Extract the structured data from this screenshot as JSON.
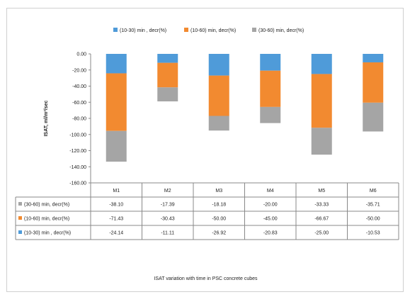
{
  "chart_data": {
    "type": "bar",
    "stacked": true,
    "categories": [
      "M1",
      "M2",
      "M3",
      "M4",
      "M5",
      "M6"
    ],
    "series": [
      {
        "name": "(10-30) min , decr(%)",
        "color": "#4f9bd9",
        "values": [
          -24.14,
          -11.11,
          -26.92,
          -20.83,
          -25.0,
          -10.53
        ]
      },
      {
        "name": "(10-60) min, decr(%)",
        "color": "#f28a30",
        "values": [
          -71.43,
          -30.43,
          -50.0,
          -45.0,
          -66.67,
          -50.0
        ]
      },
      {
        "name": "(30-60) min, decr(%)",
        "color": "#a5a5a5",
        "values": [
          -38.1,
          -17.39,
          -18.18,
          -20.0,
          -33.33,
          -35.71
        ]
      }
    ],
    "table_rows": [
      {
        "name": "(30-60) min, decr(%)",
        "color": "#a5a5a5",
        "cells": [
          "-38.10",
          "-17.39",
          "-18.18",
          "-20.00",
          "-33.33",
          "-35.71"
        ]
      },
      {
        "name": "(10-60) min, decr(%)",
        "color": "#f28a30",
        "cells": [
          "-71.43",
          "-30.43",
          "-50.00",
          "-45.00",
          "-66.67",
          "-50.00"
        ]
      },
      {
        "name": "(10-30) min , decr(%)",
        "color": "#4f9bd9",
        "cells": [
          "-24.14",
          "-11.11",
          "-26.92",
          "-20.83",
          "-25.00",
          "-10.53"
        ]
      }
    ],
    "ylim": [
      -160,
      0
    ],
    "yticks": [
      "0.00",
      "-20.00",
      "-40.00",
      "-60.00",
      "-80.00",
      "-100.00",
      "-120.00",
      "-140.00",
      "-160.00"
    ],
    "ylabel": "ISAT,  ml/m²/sec",
    "legend_position": "top",
    "caption": "ISAT variation with time in PSC concrete cubes",
    "grid": false
  }
}
